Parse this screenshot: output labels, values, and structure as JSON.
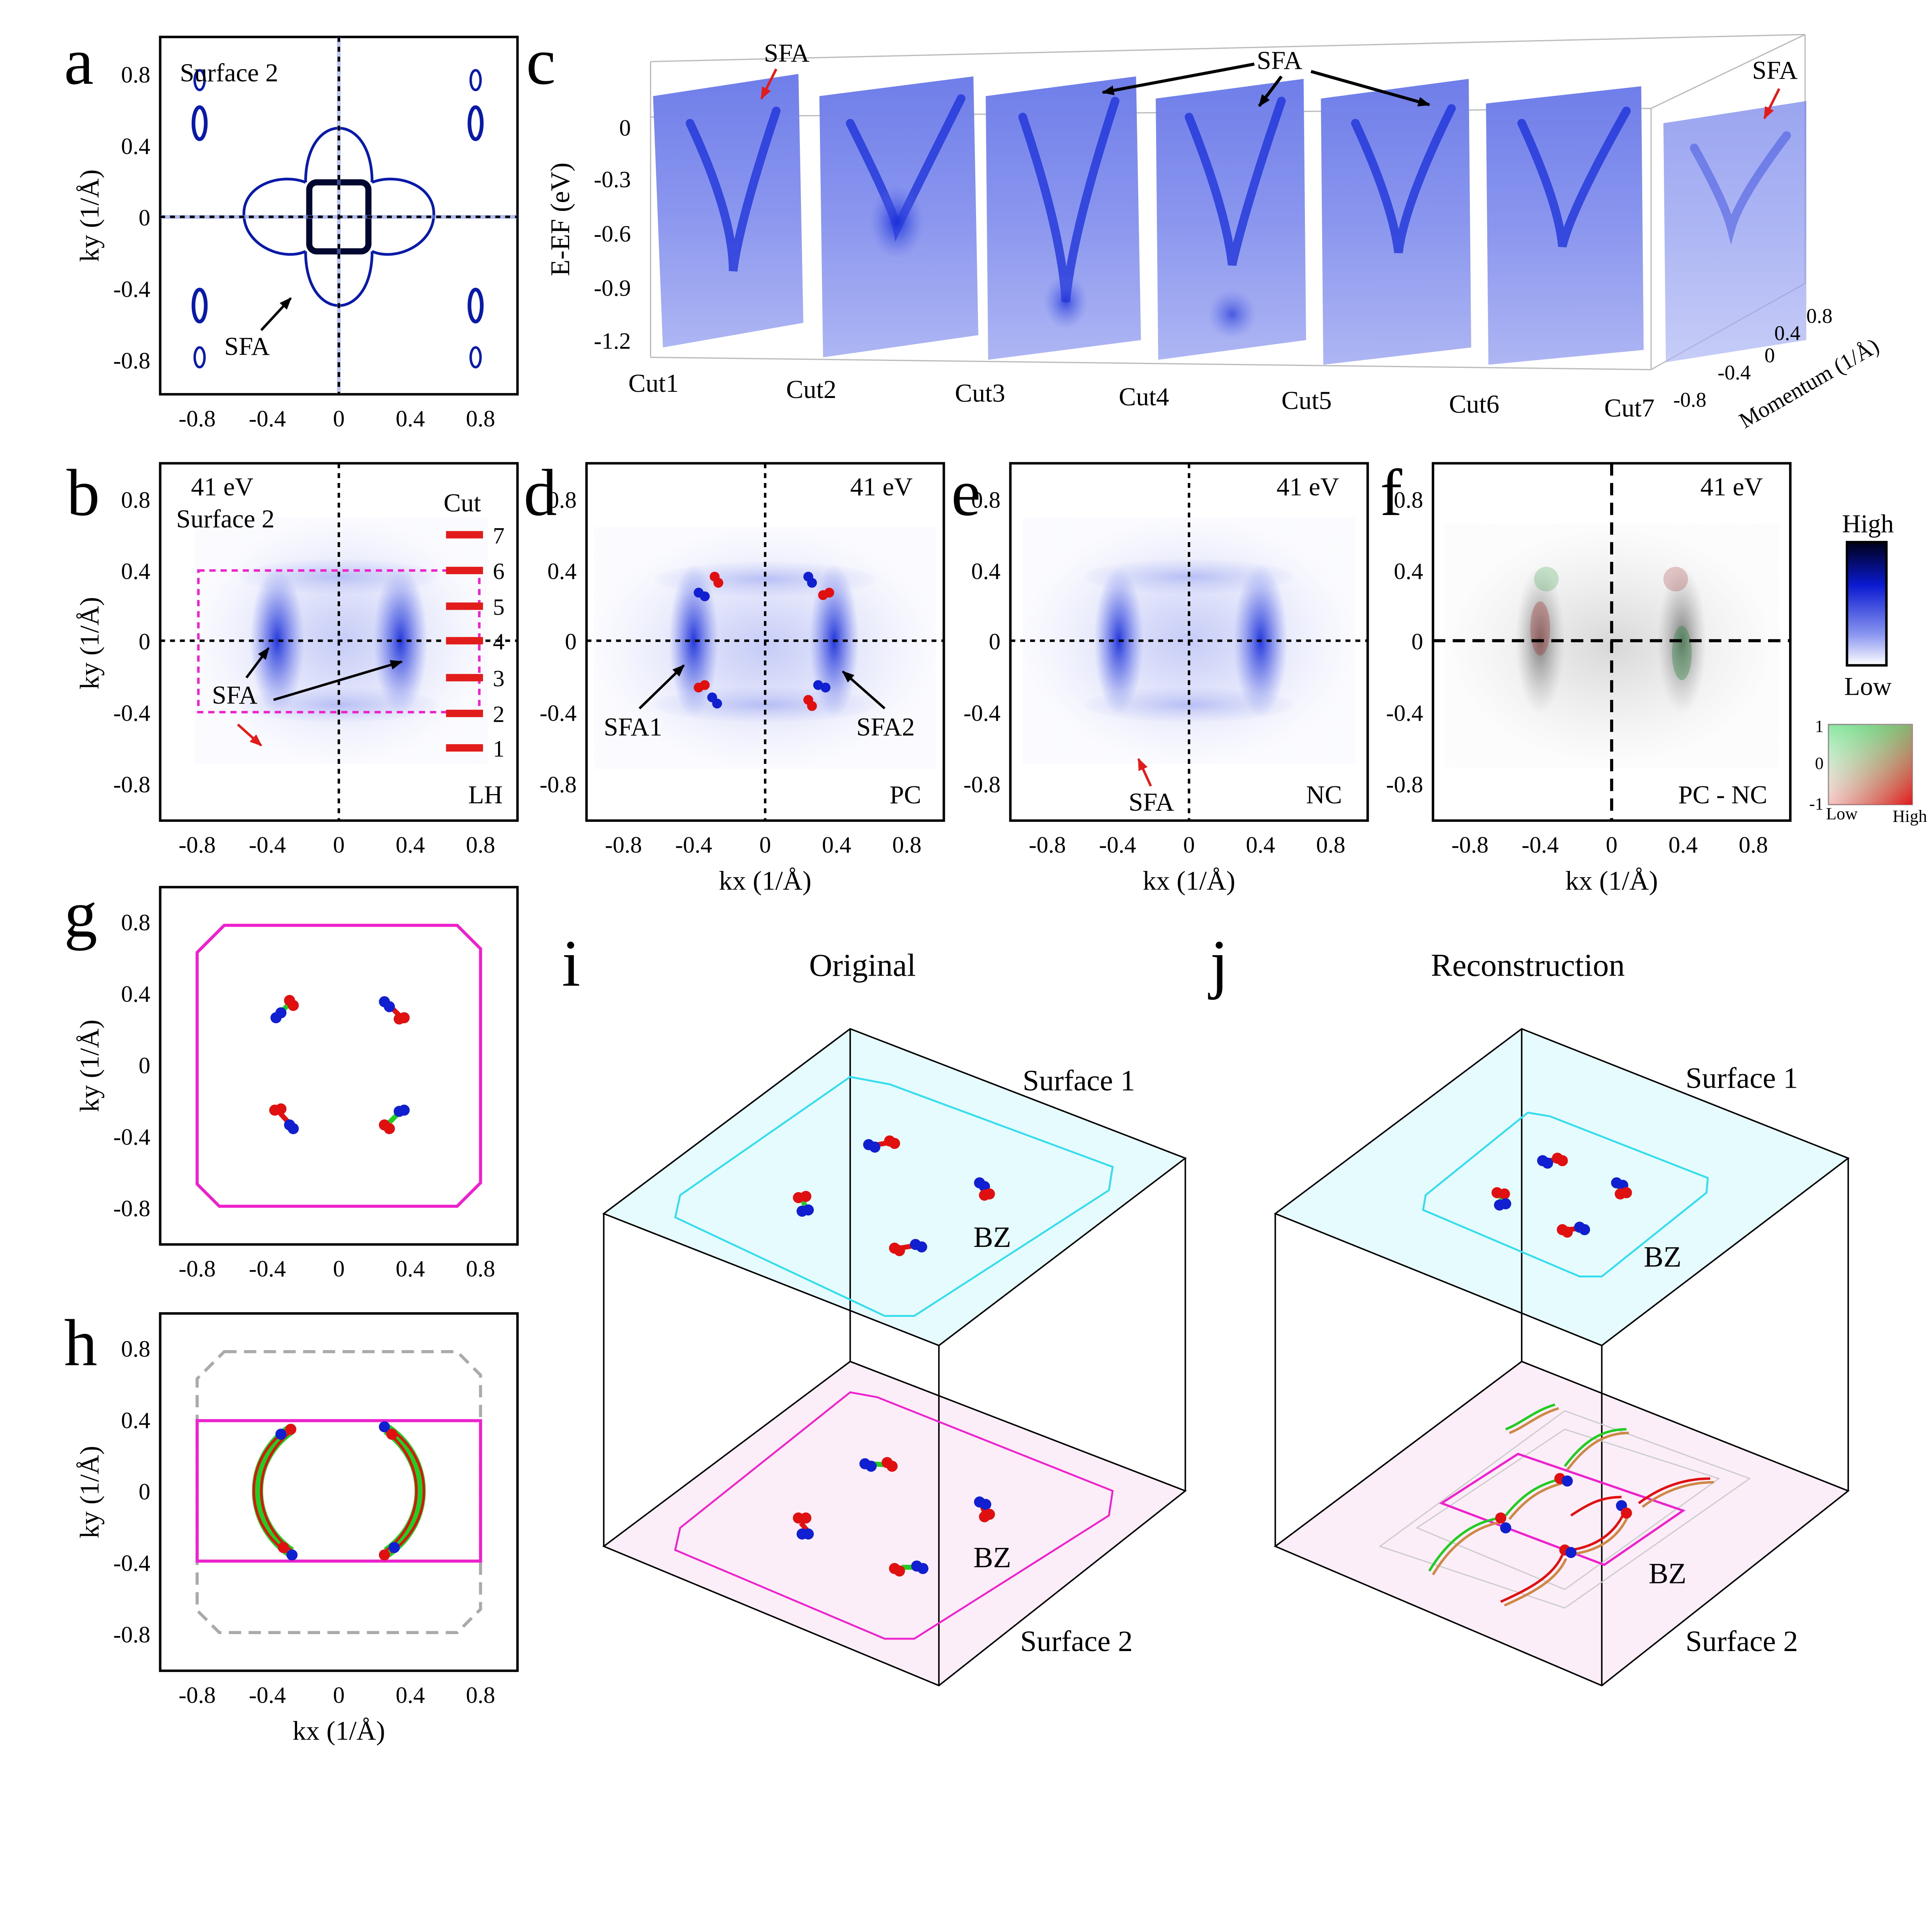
{
  "figure_labels": [
    "a",
    "b",
    "c",
    "d",
    "e",
    "f",
    "g",
    "h",
    "i",
    "j"
  ],
  "axes": {
    "ticks": [
      "-0.8",
      "-0.4",
      "0",
      "0.4",
      "0.8"
    ],
    "kx_label": "kx (1/Å)",
    "ky_label": "ky (1/Å)"
  },
  "panel_a": {
    "surface": "Surface 2",
    "annotation": "SFA"
  },
  "panel_b": {
    "energy": "41 eV",
    "surface": "Surface 2",
    "cut_label": "Cut",
    "cut_numbers": [
      "7",
      "6",
      "5",
      "4",
      "3",
      "2",
      "1"
    ],
    "annotation": "SFA",
    "polarization": "LH"
  },
  "panel_c": {
    "annotation": "SFA",
    "energy_axis_label": "E-EF (eV)",
    "energy_ticks": [
      "0",
      "-0.3",
      "-0.6",
      "-0.9",
      "-1.2"
    ],
    "cuts": [
      "Cut1",
      "Cut2",
      "Cut3",
      "Cut4",
      "Cut5",
      "Cut6",
      "Cut7"
    ],
    "momentum_label": "Momentum (1/Å)",
    "momentum_ticks": [
      "-0.8",
      "-0.4",
      "0",
      "0.4",
      "0.8"
    ]
  },
  "panel_d": {
    "energy": "41 eV",
    "sfa1": "SFA1",
    "sfa2": "SFA2",
    "polarization": "PC"
  },
  "panel_e": {
    "energy": "41 eV",
    "annotation": "SFA",
    "polarization": "NC"
  },
  "panel_f": {
    "energy": "41 eV",
    "polarization": "PC - NC"
  },
  "colorbar": {
    "high": "High",
    "low": "Low",
    "diff_ticks": [
      "1",
      "0",
      "-1"
    ],
    "diff_low": "Low",
    "diff_high": "High"
  },
  "panel_i": {
    "title": "Original",
    "surface_top": "Surface 1",
    "surface_bottom": "Surface 2",
    "bz": "BZ",
    "bz2": "BZ"
  },
  "panel_j": {
    "title": "Reconstruction",
    "surface_top": "Surface 1",
    "surface_bottom": "Surface 2",
    "bz": "BZ",
    "bz2": "BZ"
  },
  "colors": {
    "arpes_blue": "#1a2fd8",
    "weyl_red": "#e01010",
    "weyl_blue": "#1020d0",
    "arc_green": "#22cc22",
    "bz_magenta": "#ee22cc",
    "bz_cyan": "#33ddee",
    "top_face": "#e6fbfd",
    "bottom_face": "#fbeef8",
    "cut_marker": "#e21b1b"
  }
}
